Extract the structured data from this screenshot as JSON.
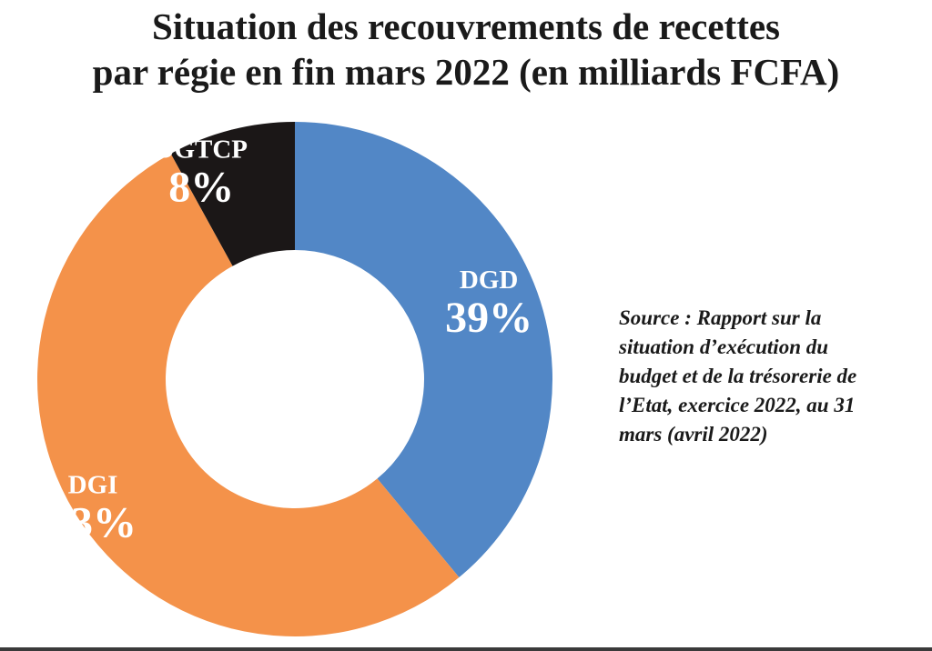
{
  "chart_data": {
    "type": "pie",
    "title_lines": [
      "Situation des recouvrements de recettes",
      "par régie en fin mars 2022 (en milliards FCFA)"
    ],
    "slices": [
      {
        "label": "DGD",
        "value": 39,
        "value_label": "39%",
        "color": "#5287c6"
      },
      {
        "label": "DGI",
        "value": 53,
        "value_label": "53%",
        "color": "#f4924a"
      },
      {
        "label": "DGTCP",
        "value": 8,
        "value_label": "8%",
        "color": "#1b1717"
      }
    ],
    "slice_order": "clockwise from top",
    "hole": "white center (donut)"
  },
  "source": {
    "lines": [
      "Source : Rapport sur la",
      "situation d’exécution du",
      "budget et de la trésorerie de",
      "l’Etat, exercice 2022, au 31",
      "mars (avril 2022)"
    ]
  }
}
